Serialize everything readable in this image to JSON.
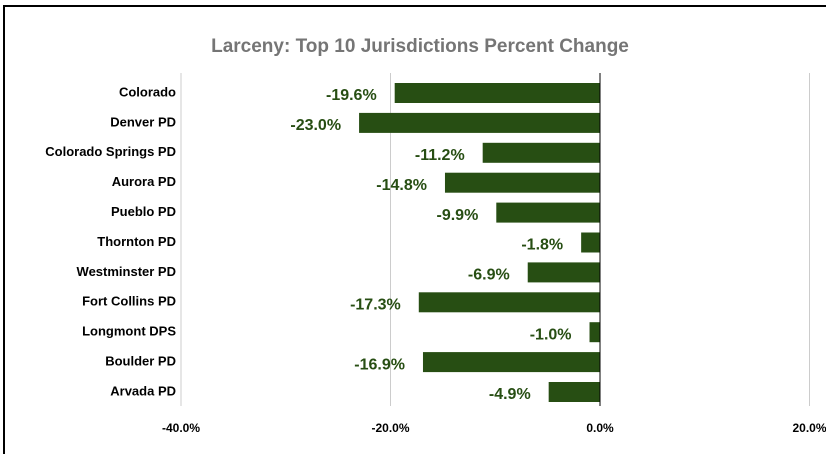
{
  "chart_data": {
    "type": "bar",
    "orientation": "horizontal",
    "title": "Larceny: Top 10 Jurisdictions Percent Change",
    "categories": [
      "Colorado",
      "Denver PD",
      "Colorado Springs PD",
      "Aurora PD",
      "Pueblo PD",
      "Thornton PD",
      "Westminster PD",
      "Fort Collins PD",
      "Longmont DPS",
      "Boulder PD",
      "Arvada PD"
    ],
    "values": [
      -19.6,
      -23.0,
      -11.2,
      -14.8,
      -9.9,
      -1.8,
      -6.9,
      -17.3,
      -1.0,
      -16.9,
      -4.9
    ],
    "value_labels": [
      "-19.6%",
      "-23.0%",
      "-11.2%",
      "-14.8%",
      "-9.9%",
      "-1.8%",
      "-6.9%",
      "-17.3%",
      "-1.0%",
      "-16.9%",
      "-4.9%"
    ],
    "color": "#274e13",
    "xlim": [
      -40,
      20
    ],
    "xticks": [
      {
        "value": -40,
        "label": "-40.0%"
      },
      {
        "value": -20,
        "label": "-20.0%"
      },
      {
        "value": 0,
        "label": "0.0%"
      },
      {
        "value": 20,
        "label": "20.0%"
      }
    ],
    "grid": true
  }
}
